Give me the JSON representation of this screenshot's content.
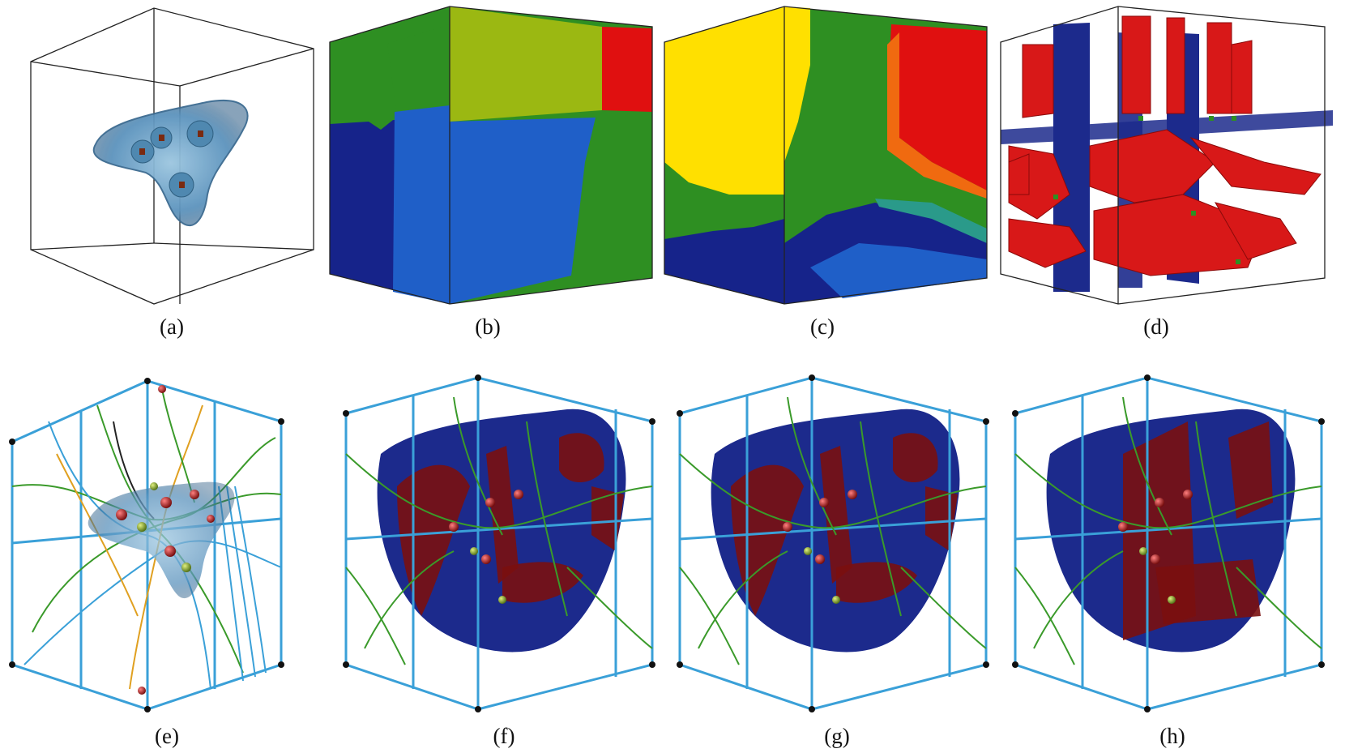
{
  "panels": [
    {
      "id": "a",
      "caption": "(a)"
    },
    {
      "id": "b",
      "caption": "(b)"
    },
    {
      "id": "c",
      "caption": "(c)"
    },
    {
      "id": "d",
      "caption": "(d)"
    },
    {
      "id": "e",
      "caption": "(e)"
    },
    {
      "id": "f",
      "caption": "(f)"
    },
    {
      "id": "g",
      "caption": "(g)"
    },
    {
      "id": "h",
      "caption": "(h)"
    }
  ],
  "colors": {
    "cube_edge": "#222222",
    "mc_blue_dark": "#16238a",
    "mc_blue": "#1f5fc8",
    "mc_green": "#2e8f22",
    "mc_yellowgreen": "#9bb812",
    "mc_red": "#e01010",
    "mc_yellow": "#ffe000",
    "mc_orange": "#f06a10",
    "mc_teal": "#2a9a8a",
    "surface_blue": "#1c2a8c",
    "surface_red": "#7a1010",
    "graph_green": "#3a9a2a",
    "graph_cyan": "#3aa0d8",
    "graph_orange": "#e0a020",
    "node_red": "#b01818",
    "blob_blue": "#6fa6cc"
  }
}
